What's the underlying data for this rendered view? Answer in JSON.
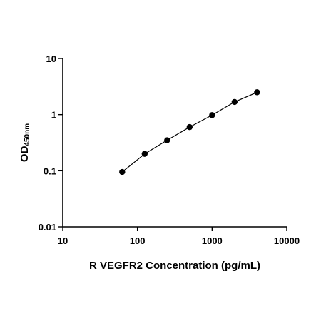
{
  "chart_data": {
    "type": "scatter",
    "title": "",
    "xlabel": "R VEGFR2 Concentration (pg/mL)",
    "ylabel": {
      "main": "OD",
      "subscript": "450nm"
    },
    "xscale": "log",
    "yscale": "log",
    "xlim": [
      10,
      10000
    ],
    "ylim": [
      0.01,
      10
    ],
    "xticks": [
      10,
      100,
      1000,
      10000
    ],
    "xtick_labels": [
      "10",
      "100",
      "1000",
      "10000"
    ],
    "yticks": [
      0.01,
      0.1,
      1,
      10
    ],
    "ytick_labels": [
      "0.01",
      "0.1",
      "1",
      "10"
    ],
    "grid": false,
    "fit_line": true,
    "series": [
      {
        "x": [
          62.5,
          125,
          250,
          500,
          1000,
          2000,
          4000
        ],
        "y": [
          0.095,
          0.2,
          0.35,
          0.6,
          0.98,
          1.68,
          2.5
        ]
      }
    ],
    "colors": {
      "marker": "#000000",
      "line": "#000000"
    }
  }
}
